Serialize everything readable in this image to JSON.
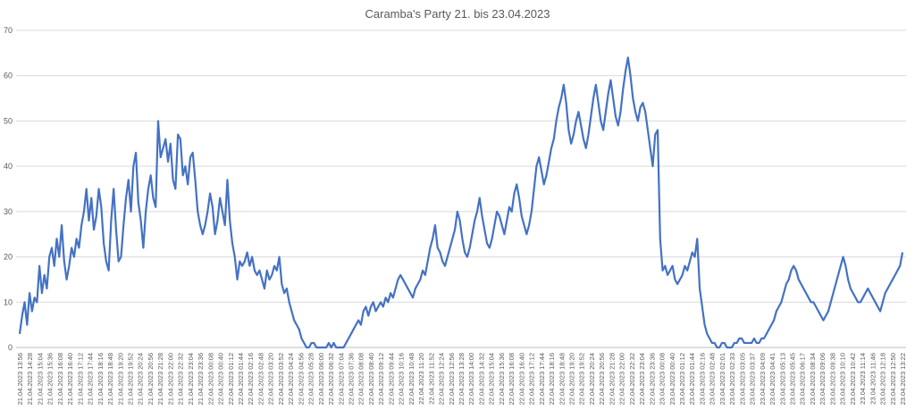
{
  "chart_data": {
    "type": "line",
    "title": "Caramba's Party 21. bis 23.04.2023",
    "xlabel": "",
    "ylabel": "",
    "ylim": [
      0,
      70
    ],
    "yticks": [
      0,
      10,
      20,
      30,
      40,
      50,
      60,
      70
    ],
    "grid": true,
    "legend": "none",
    "line_color": "#4472C4",
    "x_tick_labels": [
      "21.04.2023 13:56",
      "21.04.2023 14:28",
      "21.04.2023 15:04",
      "21.04.2023 15:36",
      "21.04.2023 16:08",
      "21.04.2023 16:40",
      "21.04.2023 17:12",
      "21.04.2023 17:44",
      "21.04.2023 18:16",
      "21.04.2023 18:48",
      "21.04.2023 19:20",
      "21.04.2023 19:52",
      "21.04.2023 20:24",
      "21.04.2023 20:56",
      "21.04.2023 21:28",
      "21.04.2023 22:00",
      "21.04.2023 22:32",
      "21.04.2023 23:04",
      "21.04.2023 23:36",
      "22.04.2023 00:08",
      "22.04.2023 00:40",
      "22.04.2023 01:12",
      "22.04.2023 01:44",
      "22.04.2023 02:16",
      "22.04.2023 02:48",
      "22.04.2023 03:20",
      "22.04.2023 03:52",
      "22.04.2023 04:24",
      "22.04.2023 04:56",
      "22.04.2023 05:28",
      "22.04.2023 06:00",
      "22.04.2023 06:32",
      "22.04.2023 07:04",
      "22.04.2023 07:36",
      "22.04.2023 08:08",
      "22.04.2023 08:40",
      "22.04.2023 09:12",
      "22.04.2023 09:44",
      "22.04.2023 10:16",
      "22.04.2023 10:48",
      "22.04.2023 11:20",
      "22.04.2023 11:52",
      "22.04.2023 12:24",
      "22.04.2023 12:56",
      "22.04.2023 13:28",
      "22.04.2023 14:00",
      "22.04.2023 14:32",
      "22.04.2023 15:04",
      "22.04.2023 15:36",
      "22.04.2023 16:08",
      "22.04.2023 16:40",
      "22.04.2023 17:12",
      "22.04.2023 17:44",
      "22.04.2023 18:16",
      "22.04.2023 18:48",
      "22.04.2023 19:20",
      "22.04.2023 19:52",
      "22.04.2023 20:24",
      "22.04.2023 20:56",
      "22.04.2023 21:28",
      "22.04.2023 22:00",
      "22.04.2023 22:32",
      "22.04.2023 23:04",
      "22.04.2023 23:36",
      "23.04.2023 00:08",
      "23.04.2023 00:40",
      "23.04.2023 01:12",
      "23.04.2023 01:44",
      "23.04.2023 02:16",
      "23.04.2023 02:48",
      "23.04.2023 02:01",
      "23.04.2023 02:33",
      "23.04.2023 03:05",
      "23.04.2023 03:37",
      "23.04.2023 04:09",
      "23.04.2023 04:41",
      "23.04.2023 05:13",
      "23.04.2023 05:45",
      "23.04.2023 06:17",
      "23.04.2023 08:34",
      "23.04.2023 09:06",
      "23.04.2023 09:38",
      "23.04.2023 10:10",
      "23.04.2023 10:42",
      "23.04.2023 11:14",
      "23.04.2023 11:46",
      "23.04.2023 12:18",
      "23.04.2023 12:50",
      "23.04.2023 13:22"
    ],
    "series": [
      {
        "values": [
          3,
          7,
          10,
          5,
          12,
          8,
          11,
          10,
          18,
          12,
          16,
          13,
          20,
          22,
          18,
          24,
          20,
          27,
          19,
          15,
          18,
          22,
          20,
          24,
          22,
          27,
          30,
          35,
          28,
          33,
          26,
          29,
          35,
          31,
          23,
          19,
          17,
          28,
          35,
          26,
          19,
          20,
          27,
          33,
          37,
          30,
          40,
          43,
          32,
          28,
          22,
          30,
          35,
          38,
          33,
          31,
          50,
          42,
          44,
          46,
          41,
          45,
          37,
          35,
          47,
          46,
          38,
          40,
          36,
          42,
          43,
          37,
          30,
          27,
          25,
          27,
          30,
          34,
          31,
          25,
          28,
          33,
          30,
          27,
          37,
          28,
          23,
          20,
          15,
          19,
          18,
          19,
          21,
          18,
          20,
          17,
          16,
          17,
          15,
          13,
          17,
          15,
          16,
          18,
          17,
          20,
          14,
          12,
          13,
          10,
          8,
          6,
          5,
          4,
          2,
          1,
          0,
          0,
          1,
          1,
          0,
          0,
          0,
          0,
          0,
          1,
          0,
          1,
          0,
          0,
          0,
          0,
          1,
          2,
          3,
          4,
          5,
          6,
          5,
          8,
          9,
          7,
          9,
          10,
          8,
          9,
          10,
          9,
          11,
          10,
          12,
          11,
          13,
          15,
          16,
          15,
          14,
          13,
          12,
          11,
          13,
          14,
          15,
          17,
          16,
          19,
          22,
          24,
          27,
          22,
          21,
          19,
          18,
          20,
          22,
          24,
          26,
          30,
          28,
          24,
          21,
          20,
          22,
          25,
          28,
          30,
          33,
          29,
          26,
          23,
          22,
          24,
          27,
          30,
          29,
          27,
          25,
          28,
          31,
          30,
          34,
          36,
          33,
          29,
          27,
          25,
          27,
          30,
          35,
          40,
          42,
          39,
          36,
          38,
          41,
          44,
          46,
          50,
          53,
          55,
          58,
          54,
          48,
          45,
          47,
          50,
          52,
          49,
          46,
          44,
          47,
          51,
          55,
          58,
          54,
          50,
          48,
          52,
          56,
          59,
          55,
          51,
          49,
          52,
          57,
          61,
          64,
          60,
          55,
          52,
          50,
          53,
          54,
          52,
          48,
          44,
          40,
          47,
          48,
          24,
          17,
          18,
          16,
          17,
          18,
          15,
          14,
          15,
          16,
          18,
          17,
          19,
          21,
          20,
          24,
          13,
          9,
          5,
          3,
          2,
          1,
          1,
          0,
          0,
          1,
          1,
          0,
          0,
          0,
          1,
          1,
          2,
          2,
          1,
          1,
          1,
          1,
          2,
          1,
          1,
          2,
          2,
          3,
          4,
          5,
          6,
          8,
          9,
          10,
          12,
          14,
          15,
          17,
          18,
          17,
          15,
          14,
          13,
          12,
          11,
          10,
          10,
          9,
          8,
          7,
          6,
          7,
          8,
          10,
          12,
          14,
          16,
          18,
          20,
          18,
          15,
          13,
          12,
          11,
          10,
          10,
          11,
          12,
          13,
          12,
          11,
          10,
          9,
          8,
          10,
          12,
          13,
          14,
          15,
          16,
          17,
          18,
          21
        ]
      }
    ]
  }
}
